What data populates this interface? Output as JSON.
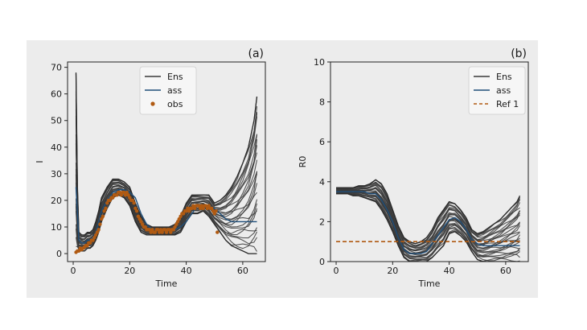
{
  "colors": {
    "figure_bg": "#ececec",
    "plot_bg": "#ececec",
    "axis": "#222222",
    "ensemble": "#3a3a3a",
    "assimilation": "#1f4e79",
    "observations": "#b05a12",
    "reference": "#b05a12"
  },
  "chart_data": [
    {
      "type": "line",
      "panel_label": "(a)",
      "xlabel": "Time",
      "ylabel": "I",
      "xlim": [
        -2,
        68
      ],
      "ylim": [
        -3,
        72
      ],
      "xticks": [
        0,
        20,
        40,
        60
      ],
      "yticks": [
        0,
        10,
        20,
        30,
        40,
        50,
        60,
        70
      ],
      "grid": false,
      "legend": {
        "placement": "top-center",
        "entries": [
          "Ens",
          "ass",
          "obs"
        ]
      },
      "series": [
        {
          "name": "Ens",
          "style": "ensemble band (many member lines)",
          "x": [
            1,
            1.5,
            2,
            3,
            4,
            5,
            6,
            7,
            8,
            9,
            10,
            12,
            14,
            16,
            18,
            20,
            22,
            24,
            26,
            28,
            30,
            32,
            34,
            36,
            38,
            40,
            42,
            44,
            46,
            48,
            50,
            52,
            54,
            56,
            58,
            60,
            62,
            64,
            65
          ],
          "lower": [
            1,
            1,
            1,
            1,
            1,
            2,
            2,
            3,
            5,
            8,
            12,
            17,
            21,
            22,
            21,
            18,
            12,
            8,
            7,
            7,
            7,
            7,
            7,
            7,
            8,
            12,
            15,
            15,
            16,
            14,
            11,
            8,
            5,
            3,
            2,
            1,
            0,
            0,
            0
          ],
          "upper": [
            68,
            25,
            8,
            7,
            7,
            8,
            8,
            9,
            12,
            16,
            21,
            25,
            28,
            28,
            27,
            25,
            19,
            14,
            11,
            10,
            10,
            10,
            10,
            11,
            14,
            19,
            22,
            22,
            22,
            22,
            19,
            20,
            22,
            25,
            29,
            34,
            40,
            50,
            59
          ]
        },
        {
          "name": "ass",
          "x": [
            1,
            2,
            3,
            4,
            5,
            6,
            7,
            8,
            9,
            10,
            12,
            14,
            16,
            18,
            20,
            22,
            24,
            26,
            28,
            30,
            32,
            34,
            36,
            38,
            40,
            42,
            44,
            46,
            48,
            50,
            52,
            54,
            56,
            58,
            60,
            62,
            64,
            65
          ],
          "y": [
            25,
            5,
            4,
            4,
            5,
            5,
            6,
            8,
            12,
            16,
            20,
            23,
            24,
            24,
            23,
            21,
            15,
            11,
            9,
            9,
            9,
            9,
            9,
            10,
            12,
            15,
            18,
            18,
            18,
            17,
            15,
            13,
            12,
            12,
            12,
            12,
            12,
            12
          ]
        },
        {
          "name": "obs",
          "type": "scatter",
          "x": [
            1,
            1.5,
            2,
            2.5,
            3,
            3.5,
            4,
            4.5,
            5,
            5.5,
            6,
            6.5,
            7,
            7.5,
            8,
            8.5,
            9,
            9.5,
            10,
            10.5,
            11,
            11.5,
            12,
            12.5,
            13,
            13.5,
            14,
            14.5,
            15,
            15.5,
            16,
            16.5,
            17,
            17.5,
            18,
            18.5,
            19,
            19.5,
            20,
            20.5,
            21,
            21.5,
            22,
            22.5,
            23,
            23.5,
            24,
            24.5,
            25,
            25.5,
            26,
            26.5,
            27,
            27.5,
            28,
            28.5,
            29,
            29.5,
            30,
            30.5,
            31,
            31.5,
            32,
            32.5,
            33,
            33.5,
            34,
            34.5,
            35,
            35.5,
            36,
            36.5,
            37,
            37.5,
            38,
            38.5,
            39,
            39.5,
            40,
            40.5,
            41,
            41.5,
            42,
            42.5,
            43,
            43.5,
            44,
            44.5,
            45,
            45.5,
            46,
            46.5,
            47,
            47.5,
            48,
            48.5,
            49,
            49.5,
            50,
            50.5,
            51
          ],
          "y": [
            0.5,
            1,
            1,
            2,
            1.5,
            2,
            2.5,
            3,
            3,
            4,
            4,
            5,
            5,
            6,
            7,
            8,
            9,
            11,
            13,
            14,
            16,
            17,
            19,
            20,
            20,
            21,
            21,
            22,
            22,
            22,
            23,
            23,
            22,
            23,
            23,
            22,
            23,
            22,
            21,
            20,
            20,
            19,
            17,
            16,
            14,
            13,
            12,
            11,
            10,
            10,
            9,
            9,
            9,
            8,
            9,
            8,
            8,
            9,
            9,
            8,
            9,
            8,
            9,
            9,
            8,
            9,
            9,
            8,
            9,
            9,
            10,
            11,
            12,
            13,
            14,
            15,
            15,
            16,
            16,
            17,
            16,
            17,
            17,
            18,
            17,
            18,
            18,
            18,
            17,
            18,
            17,
            18,
            18,
            17,
            18,
            17,
            17,
            16,
            15,
            16,
            8
          ]
        }
      ]
    },
    {
      "type": "line",
      "panel_label": "(b)",
      "xlabel": "Time",
      "ylabel": "R0",
      "xlim": [
        -2,
        68
      ],
      "ylim": [
        0,
        10
      ],
      "xticks": [
        0,
        20,
        40,
        60
      ],
      "yticks": [
        0,
        2,
        4,
        6,
        8,
        10
      ],
      "grid": false,
      "legend": {
        "placement": "top-right",
        "entries": [
          "Ens",
          "ass",
          "Ref 1"
        ]
      },
      "series": [
        {
          "name": "Ens",
          "style": "ensemble band (many member lines)",
          "x": [
            0,
            2,
            4,
            6,
            8,
            10,
            12,
            14,
            16,
            18,
            20,
            22,
            24,
            26,
            28,
            30,
            32,
            34,
            36,
            38,
            40,
            42,
            44,
            46,
            48,
            50,
            52,
            54,
            56,
            58,
            60,
            62,
            64,
            65
          ],
          "lower": [
            3.4,
            3.4,
            3.4,
            3.3,
            3.3,
            3.2,
            3.1,
            3.0,
            2.6,
            2.1,
            1.5,
            0.8,
            0.2,
            0.0,
            0.0,
            0.0,
            0.0,
            0.2,
            0.5,
            0.8,
            1.4,
            1.5,
            1.3,
            1.0,
            0.5,
            0.1,
            0.0,
            0.0,
            0.0,
            0.0,
            0.0,
            0.0,
            0.0,
            0.0
          ],
          "upper": [
            3.7,
            3.7,
            3.7,
            3.7,
            3.8,
            3.8,
            3.9,
            4.1,
            3.9,
            3.4,
            2.6,
            1.8,
            1.2,
            1.0,
            0.9,
            1.0,
            1.2,
            1.6,
            2.2,
            2.6,
            3.0,
            2.9,
            2.6,
            2.2,
            1.6,
            1.4,
            1.5,
            1.7,
            1.9,
            2.1,
            2.4,
            2.7,
            3.0,
            3.3
          ]
        },
        {
          "name": "ass",
          "x": [
            0,
            2,
            4,
            6,
            8,
            10,
            12,
            14,
            16,
            18,
            20,
            22,
            24,
            26,
            28,
            30,
            32,
            34,
            36,
            38,
            40,
            42,
            44,
            46,
            48,
            50,
            52,
            54,
            56,
            58,
            60,
            62,
            64,
            65
          ],
          "y": [
            3.5,
            3.5,
            3.5,
            3.5,
            3.5,
            3.5,
            3.4,
            3.4,
            3.1,
            2.6,
            2.0,
            1.2,
            0.6,
            0.4,
            0.4,
            0.4,
            0.5,
            0.9,
            1.3,
            1.7,
            2.1,
            2.2,
            2.0,
            1.6,
            1.1,
            0.9,
            0.8,
            0.8,
            0.8,
            0.8,
            0.8,
            0.8,
            0.8,
            0.8
          ]
        },
        {
          "name": "Ref 1",
          "style": "dashed",
          "x": [
            0,
            65
          ],
          "y": [
            1,
            1
          ]
        }
      ]
    }
  ]
}
